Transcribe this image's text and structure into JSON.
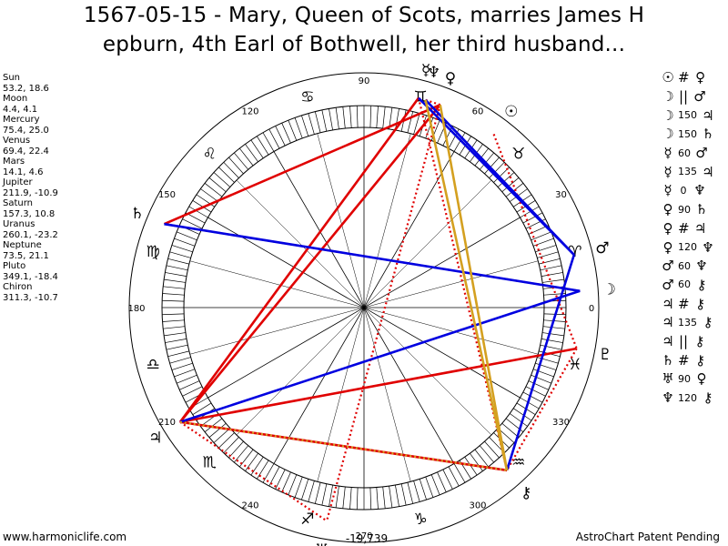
{
  "title": {
    "line1": "1567-05-15 - Mary, Queen of Scots, marries James H",
    "line2": "epburn, 4th Earl of Bothwell, her third husband..."
  },
  "planet_positions": [
    {
      "name": "Sun",
      "value": "53.2, 18.6"
    },
    {
      "name": "Moon",
      "value": "4.4, 4.1"
    },
    {
      "name": "Mercury",
      "value": "75.4, 25.0"
    },
    {
      "name": "Venus",
      "value": "69.4, 22.4"
    },
    {
      "name": "Mars",
      "value": "14.1, 4.6"
    },
    {
      "name": "Jupiter",
      "value": "211.9, -10.9"
    },
    {
      "name": "Saturn",
      "value": "157.3, 10.8"
    },
    {
      "name": "Uranus",
      "value": "260.1, -23.2"
    },
    {
      "name": "Neptune",
      "value": "73.5, 21.1"
    },
    {
      "name": "Pluto",
      "value": "349.1, -18.4"
    },
    {
      "name": "Chiron",
      "value": "311.3, -10.7"
    }
  ],
  "aspects": [
    {
      "p1": "☉",
      "angle": "#",
      "p2": "♀"
    },
    {
      "p1": "☽",
      "angle": "||",
      "p2": "♂"
    },
    {
      "p1": "☽",
      "angle": "150",
      "p2": "♃"
    },
    {
      "p1": "☽",
      "angle": "150",
      "p2": "♄"
    },
    {
      "p1": "☿",
      "angle": "60",
      "p2": "♂"
    },
    {
      "p1": "☿",
      "angle": "135",
      "p2": "♃"
    },
    {
      "p1": "☿",
      "angle": "0",
      "p2": "♆"
    },
    {
      "p1": "♀",
      "angle": "90",
      "p2": "♄"
    },
    {
      "p1": "♀",
      "angle": "#",
      "p2": "♃"
    },
    {
      "p1": "♀",
      "angle": "120",
      "p2": "♆"
    },
    {
      "p1": "♂",
      "angle": "60",
      "p2": "♆"
    },
    {
      "p1": "♂",
      "angle": "60",
      "p2": "⚷"
    },
    {
      "p1": "♃",
      "angle": "#",
      "p2": "⚷"
    },
    {
      "p1": "♃",
      "angle": "135",
      "p2": "⚷"
    },
    {
      "p1": "♃",
      "angle": "||",
      "p2": "⚷"
    },
    {
      "p1": "♄",
      "angle": "#",
      "p2": "⚷"
    },
    {
      "p1": "♅",
      "angle": "90",
      "p2": "♀"
    },
    {
      "p1": "♆",
      "angle": "120",
      "p2": "⚷"
    }
  ],
  "chart_data": {
    "type": "astrological-wheel",
    "degree_labels": [
      "0",
      "30",
      "60",
      "90",
      "120",
      "150",
      "180",
      "210",
      "240",
      "270",
      "300",
      "330"
    ],
    "center_value": "-19,739",
    "planet_longitudes": {
      "Sun": 53.2,
      "Moon": 4.4,
      "Mercury": 75.4,
      "Venus": 69.4,
      "Mars": 14.1,
      "Jupiter": 211.9,
      "Saturn": 157.3,
      "Uranus": 260.1,
      "Neptune": 73.5,
      "Pluto": 349.1,
      "Chiron": 311.3
    },
    "planet_glyphs": {
      "Sun": "☉",
      "Moon": "☽",
      "Mercury": "☿",
      "Venus": "♀",
      "Mars": "♂",
      "Jupiter": "♃",
      "Saturn": "♄",
      "Uranus": "♅",
      "Neptune": "♆",
      "Pluto": "♇",
      "Chiron": "⚷"
    },
    "sign_glyphs": [
      "♈",
      "♉",
      "♊",
      "♋",
      "♌",
      "♍",
      "♎",
      "♏",
      "♐",
      "♑",
      "♒",
      "♓"
    ],
    "aspect_lines": [
      {
        "a": "Venus",
        "b": "Saturn",
        "color": "#e00000",
        "style": "solid"
      },
      {
        "a": "Venus",
        "b": "Jupiter",
        "color": "#e00000",
        "style": "solid"
      },
      {
        "a": "Venus",
        "b": "Uranus",
        "color": "#e00000",
        "style": "dotted"
      },
      {
        "a": "Venus",
        "b": "Neptune",
        "color": "#e00000",
        "style": "dotted"
      },
      {
        "a": "Mercury",
        "b": "Jupiter",
        "color": "#e00000",
        "style": "solid"
      },
      {
        "a": "Mercury",
        "b": "Chiron",
        "color": "#e00000",
        "style": "dotted"
      },
      {
        "a": "Moon",
        "b": "Saturn",
        "color": "#e00000",
        "style": "dotted"
      },
      {
        "a": "Sun",
        "b": "Pluto",
        "color": "#e00000",
        "style": "dotted"
      },
      {
        "a": "Pluto",
        "b": "Jupiter",
        "color": "#e00000",
        "style": "solid"
      },
      {
        "a": "Pluto",
        "b": "Chiron",
        "color": "#e00000",
        "style": "dotted"
      },
      {
        "a": "Jupiter",
        "b": "Chiron",
        "color": "#e00000",
        "style": "solid"
      },
      {
        "a": "Jupiter",
        "b": "Uranus",
        "color": "#e00000",
        "style": "dotted"
      },
      {
        "a": "Mars",
        "b": "Mercury",
        "color": "#0000e0",
        "style": "solid"
      },
      {
        "a": "Mars",
        "b": "Neptune",
        "color": "#0000e0",
        "style": "solid"
      },
      {
        "a": "Mars",
        "b": "Chiron",
        "color": "#0000e0",
        "style": "solid"
      },
      {
        "a": "Moon",
        "b": "Saturn",
        "color": "#0000e0",
        "style": "solid"
      },
      {
        "a": "Moon",
        "b": "Jupiter",
        "color": "#0000e0",
        "style": "solid"
      },
      {
        "a": "Venus",
        "b": "Chiron",
        "color": "#d4a020",
        "style": "solid"
      },
      {
        "a": "Neptune",
        "b": "Chiron",
        "color": "#d4a020",
        "style": "solid"
      },
      {
        "a": "Jupiter",
        "b": "Chiron",
        "color": "#d4a020",
        "style": "dotted"
      }
    ]
  },
  "footer": {
    "left": "www.harmoniclife.com",
    "right": "AstroChart Patent Pending"
  },
  "colors": {
    "red": "#e00000",
    "blue": "#0000e0",
    "gold": "#d4a020"
  }
}
